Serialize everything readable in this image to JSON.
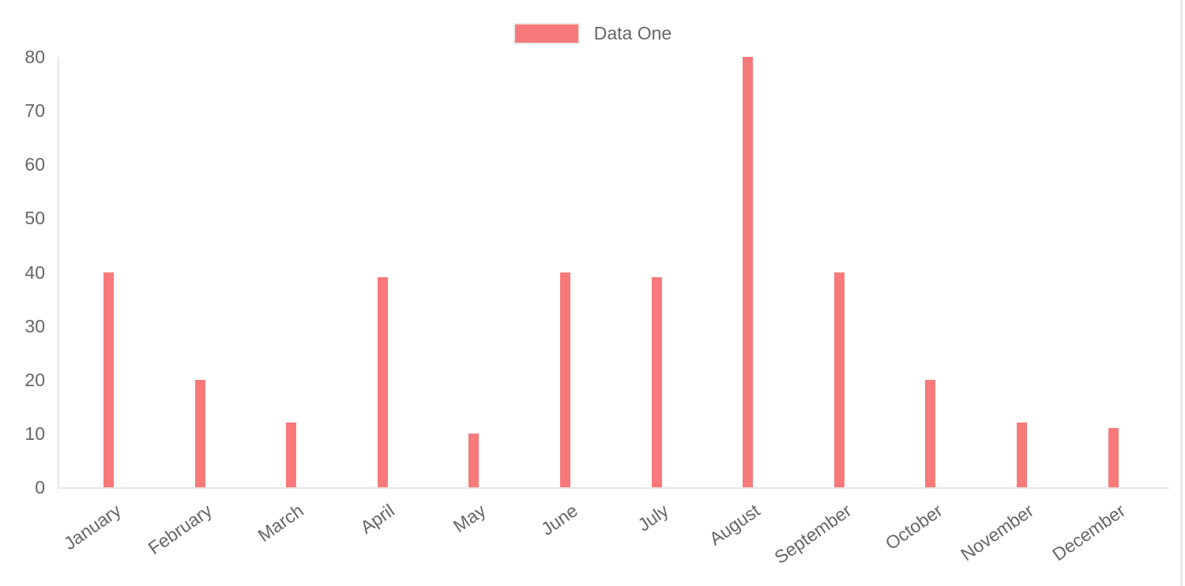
{
  "page": {
    "background": "#ffffff",
    "right_edge_border_color": "#e9e9e9"
  },
  "legend": {
    "label": "Data One",
    "swatch_color": "#f87979",
    "swatch_border_color": "#e7e7e7",
    "text_color": "#666666"
  },
  "chart_data": {
    "type": "bar",
    "title": "",
    "categories": [
      "January",
      "February",
      "March",
      "April",
      "May",
      "June",
      "July",
      "August",
      "September",
      "October",
      "November",
      "December"
    ],
    "series": [
      {
        "name": "Data One",
        "color": "#f87979",
        "values": [
          40,
          20,
          12,
          39,
          10,
          40,
          39,
          80,
          40,
          20,
          12,
          11
        ]
      }
    ],
    "xlabel": "",
    "ylabel": "",
    "ylim": [
      0,
      80
    ],
    "y_ticks": [
      0,
      10,
      20,
      30,
      40,
      50,
      60,
      70,
      80
    ],
    "grid": false,
    "legend_position": "top",
    "x_tick_rotation_deg": -35,
    "axis_line_color": "#e6e6e6",
    "tick_label_color": "#666666"
  }
}
